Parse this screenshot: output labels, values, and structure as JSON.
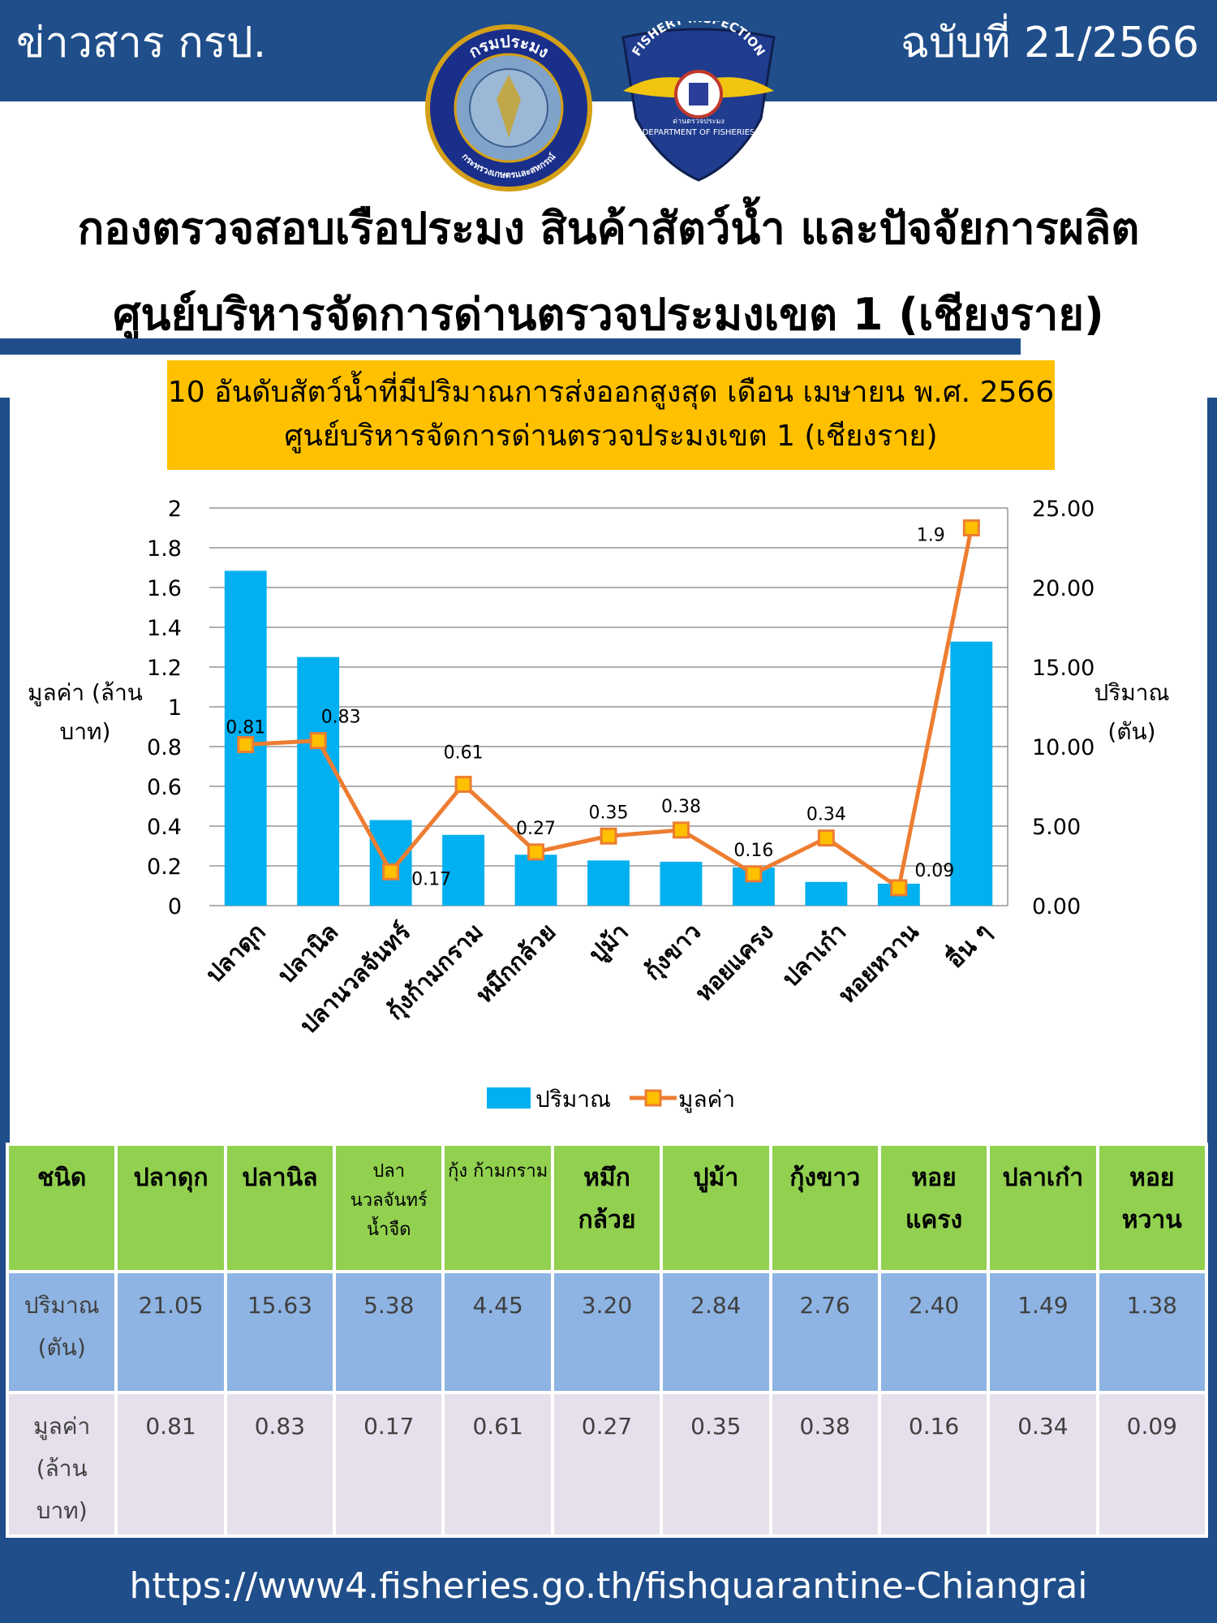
{
  "header": {
    "left": "ข่าวสาร กรป.",
    "right": "ฉบับที่ 21/2566",
    "logo1_text_top": "กรมประมง",
    "logo1_text_bottom": "กระทรวงเกษตรและสหกรณ์",
    "logo2_text_top": "FISHERY INSPECTION",
    "logo2_text_bottom": "DEPARTMENT OF FISHERIES",
    "logo2_center": "ด่านตรวจประมง"
  },
  "titles": {
    "line1": "กองตรวจสอบเรือประมง สินค้าสัตว์น้ำ และปัจจัยการผลิต",
    "line2": "ศูนย์บริหารจัดการด่านตรวจประมงเขต 1 (เชียงราย)"
  },
  "chart_data": {
    "type": "bar",
    "title": "10 อันดับสัตว์น้ำที่มีปริมาณการส่งออกสูงสุด เดือน เมษายน พ.ศ. 2566",
    "subtitle": "ศูนย์บริหารจัดการด่านตรวจประมงเขต 1 (เชียงราย)",
    "categories": [
      "ปลาดุก",
      "ปลานิล",
      "ปลานวลจันทร์",
      "กุ้งก้ามกราม",
      "หมึกกล้วย",
      "ปูม้า",
      "กุ้งขาว",
      "หอยแครง",
      "ปลาเก๋า",
      "หอยหวาน",
      "อื่น ๆ"
    ],
    "ylabel_left": "มูลค่า (ล้านบาท)",
    "ylabel_right": "ปริมาณ (ตัน)",
    "y_left_ticks": [
      "2",
      "1.8",
      "1.6",
      "1.4",
      "1.2",
      "1",
      "0.8",
      "0.6",
      "0.4",
      "0.2",
      "0"
    ],
    "y_right_ticks": [
      "25.00",
      "20.00",
      "15.00",
      "10.00",
      "5.00",
      "0.00"
    ],
    "ylim_left": [
      0,
      2
    ],
    "ylim_right": [
      0,
      25
    ],
    "grid": true,
    "legend_position": "bottom",
    "series": [
      {
        "name": "ปริมาณ",
        "type": "bar",
        "axis": "right",
        "color": "#00b0f0",
        "values": [
          21.05,
          15.63,
          5.38,
          4.45,
          3.2,
          2.84,
          2.76,
          2.4,
          1.49,
          1.38,
          16.6
        ]
      },
      {
        "name": "มูลค่า",
        "type": "line",
        "axis": "left",
        "color": "#ed7d31",
        "marker_color": "#ffc000",
        "values": [
          0.81,
          0.83,
          0.17,
          0.61,
          0.27,
          0.35,
          0.38,
          0.16,
          0.34,
          0.09,
          1.9
        ],
        "labels": [
          "0.81",
          "0.83",
          "0.17",
          "0.61",
          "0.27",
          "0.35",
          "0.38",
          "0.16",
          "0.34",
          "0.09",
          "1.9"
        ]
      }
    ]
  },
  "table": {
    "headers": [
      "ชนิด",
      "ปลาดุก",
      "ปลานิล",
      "ปลา นวลจันทร์ น้ำจืด",
      "กุ้ง ก้ามกราม",
      "หมึก กล้วย",
      "ปูม้า",
      "กุ้งขาว",
      "หอย แครง",
      "ปลาเก๋า",
      "หอย หวาน"
    ],
    "row1_label": "ปริมาณ (ตัน)",
    "row1": [
      "21.05",
      "15.63",
      "5.38",
      "4.45",
      "3.20",
      "2.84",
      "2.76",
      "2.40",
      "1.49",
      "1.38"
    ],
    "row2_label": "มูลค่า (ล้าน บาท)",
    "row2": [
      "0.81",
      "0.83",
      "0.17",
      "0.61",
      "0.27",
      "0.35",
      "0.38",
      "0.16",
      "0.34",
      "0.09"
    ]
  },
  "footer": {
    "url": "https://www4.fisheries.go.th/fishquarantine-Chiangrai"
  }
}
